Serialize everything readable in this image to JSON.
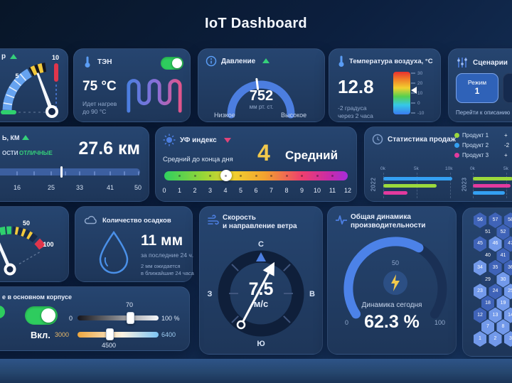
{
  "title": "IoT Dashboard",
  "meter": {
    "label": "р",
    "tick5": "5",
    "tick10": "10"
  },
  "heater": {
    "label": "ТЭН",
    "temp": "75 °C",
    "status1": "Идет нагрев",
    "status2": "до 90 °C"
  },
  "pressure": {
    "label": "Давление",
    "value": "752",
    "unit": "мм рт. ст.",
    "low": "Низкое",
    "high": "Высокое"
  },
  "air_temp": {
    "label": "Температура воздуха, °C",
    "value": "12.8",
    "forecast1": "-2 градуса",
    "forecast2": "через 2 часа",
    "scale": [
      "30",
      "20",
      "10",
      "0",
      "-10"
    ]
  },
  "scenarios": {
    "label": "Сценарии",
    "modes": [
      {
        "word": "Режим",
        "num": "1"
      },
      {
        "word": "Режим",
        "num": "2"
      }
    ],
    "link": "Перейти к описанию ре"
  },
  "visibility": {
    "label": "ь, км",
    "cond_prefix": "ости",
    "cond_value": "отличные",
    "value": "27.6 км",
    "ticks": [
      "16",
      "25",
      "33",
      "41",
      "50"
    ]
  },
  "uv": {
    "label": "УФ индекс",
    "subtitle": "Средний до конца дня",
    "value": "4",
    "level": "Средний",
    "ticks": [
      "0",
      "1",
      "2",
      "3",
      "4",
      "5",
      "6",
      "7",
      "8",
      "9",
      "10",
      "11",
      "12"
    ]
  },
  "sales": {
    "label": "Статистика продаж",
    "legend": [
      {
        "name": "Продукт 1",
        "delta": "+"
      },
      {
        "name": "Продукт 2",
        "delta": "-2"
      },
      {
        "name": "Продукт 3",
        "delta": "+"
      }
    ]
  },
  "chart_data": {
    "type": "bar",
    "orientation": "horizontal",
    "title": "Статистика продаж",
    "categories": [
      "2022",
      "2023"
    ],
    "x_ticks_2022": [
      "0k",
      "5k",
      "10k"
    ],
    "x_ticks_2023": [
      "0k",
      "5k"
    ],
    "series": [
      {
        "name": "Продукт 1",
        "color": "#9bd93c",
        "values": [
          8000,
          6000
        ]
      },
      {
        "name": "Продукт 2",
        "color": "#34a0f2",
        "values": [
          10300,
          4800
        ]
      },
      {
        "name": "Продукт 3",
        "color": "#e23a9e",
        "values": [
          3600,
          5600
        ]
      }
    ],
    "bar_order": [
      [
        "Продукт 2",
        "Продукт 1",
        "Продукт 3"
      ],
      [
        "Продукт 1",
        "Продукт 3",
        "Продукт 2"
      ]
    ],
    "note": "2023 group cropped by screenshot right edge; values are estimates read from gridlines"
  },
  "gauge2": {
    "tick50": "50",
    "tick100": "100"
  },
  "precip": {
    "label": "Количество осадков",
    "value": "11 мм",
    "subtitle": "за последние 24 ч.",
    "forecast1": "2 мм ожидается",
    "forecast2": "в ближайшие 24 часа"
  },
  "wind": {
    "label1": "Скорость",
    "label2": "и направление ветра",
    "value": "7.5",
    "unit": "м/с",
    "n": "С",
    "e": "В",
    "s": "Ю",
    "w": "З"
  },
  "performance": {
    "label1": "Общая динамика",
    "label2": "производительности",
    "mid": "50",
    "min": "0",
    "max": "100",
    "subtitle": "Динамика сегодня",
    "value": "62.3 %"
  },
  "lighting": {
    "label": "е в основном корпусе",
    "state": "Вкл.",
    "brightness": {
      "min": "0",
      "max": "100 %",
      "value": "70"
    },
    "color_temp": {
      "min": "3000",
      "max": "6400",
      "value": "4500"
    }
  },
  "hexgrid": {
    "rows": [
      {
        "cells": [
          {
            "n": "1",
            "s": "light"
          },
          {
            "n": "2",
            "s": "light"
          },
          {
            "n": "3",
            "s": "light"
          }
        ]
      },
      {
        "cells": [
          {
            "n": "7",
            "s": "light"
          },
          {
            "n": "8",
            "s": "light"
          },
          {
            "n": "9",
            "s": "mid"
          }
        ]
      },
      {
        "cells": [
          {
            "n": "12",
            "s": "mid"
          },
          {
            "n": "13",
            "s": "light"
          },
          {
            "n": "14",
            "s": "light"
          }
        ]
      },
      {
        "cells": [
          {
            "n": "18",
            "s": "mid"
          },
          {
            "n": "19",
            "s": "light"
          },
          {
            "n": "20",
            "s": "mid"
          }
        ]
      },
      {
        "cells": [
          {
            "n": "23",
            "s": "light"
          },
          {
            "n": "24",
            "s": "mid"
          },
          {
            "n": "25",
            "s": "light"
          }
        ]
      },
      {
        "cells": [
          {
            "n": "29",
            "s": "dark"
          },
          {
            "n": "30",
            "s": "light"
          },
          {
            "n": "31",
            "s": "mid"
          }
        ]
      },
      {
        "cells": [
          {
            "n": "34",
            "s": "light"
          },
          {
            "n": "35",
            "s": "mid"
          },
          {
            "n": "36",
            "s": "mid"
          }
        ]
      },
      {
        "cells": [
          {
            "n": "40",
            "s": "dark"
          },
          {
            "n": "41",
            "s": "mid"
          },
          {
            "n": "42",
            "s": "mid"
          }
        ]
      },
      {
        "cells": [
          {
            "n": "45",
            "s": "mid"
          },
          {
            "n": "46",
            "s": "light"
          },
          {
            "n": "47",
            "s": "mid"
          }
        ]
      },
      {
        "cells": [
          {
            "n": "51",
            "s": "dark"
          },
          {
            "n": "52",
            "s": "mid"
          },
          {
            "n": "53",
            "s": "mid"
          }
        ]
      },
      {
        "cells": [
          {
            "n": "56",
            "s": "mid"
          },
          {
            "n": "57",
            "s": "mid"
          },
          {
            "n": "58",
            "s": "mid"
          }
        ]
      }
    ]
  }
}
